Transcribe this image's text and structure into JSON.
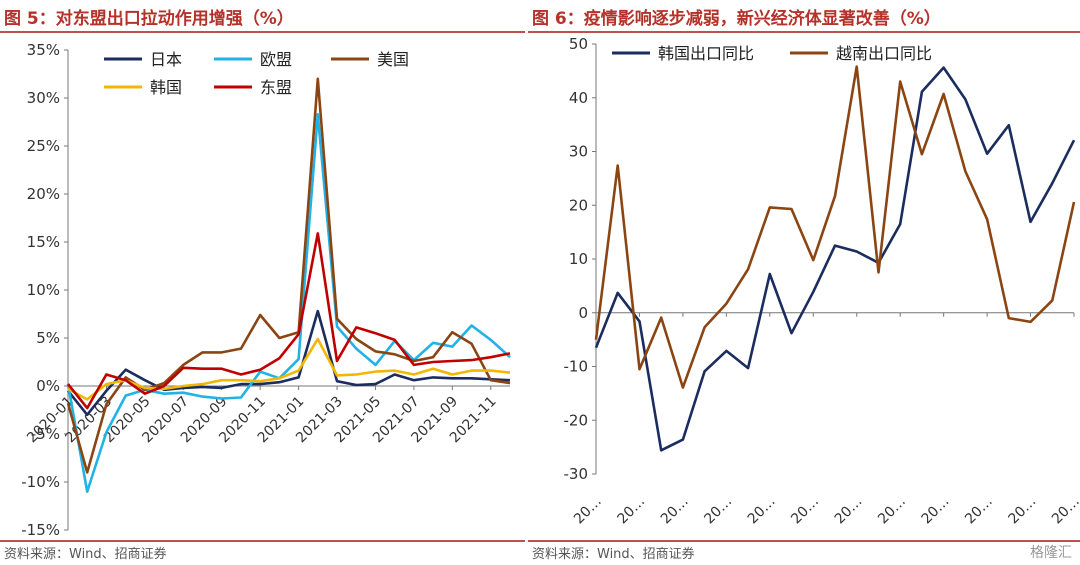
{
  "left": {
    "title": "图 5：对东盟出口拉动作用增强（%）",
    "source": "资料来源：Wind、招商证券"
  },
  "right": {
    "title": "图 6：疫情影响逐步减弱，新兴经济体显著改善（%）",
    "source": "资料来源：Wind、招商证券",
    "watermark": "格隆汇"
  },
  "chart_data": [
    {
      "type": "line",
      "title": "图 5：对东盟出口拉动作用增强（%）",
      "ylim": [
        -15,
        35
      ],
      "yticks": [
        "-15%",
        "-10%",
        "-5%",
        "0%",
        "5%",
        "10%",
        "15%",
        "20%",
        "25%",
        "30%",
        "35%"
      ],
      "ytick_values": [
        -15,
        -10,
        -5,
        0,
        5,
        10,
        15,
        20,
        25,
        30,
        35
      ],
      "x": [
        "2020-01",
        "2020-02",
        "2020-03",
        "2020-04",
        "2020-05",
        "2020-06",
        "2020-07",
        "2020-08",
        "2020-09",
        "2020-10",
        "2020-11",
        "2020-12",
        "2021-01",
        "2021-02",
        "2021-03",
        "2021-04",
        "2021-05",
        "2021-06",
        "2021-07",
        "2021-08",
        "2021-09",
        "2021-10",
        "2021-11",
        "2021-12"
      ],
      "xtick_labels": [
        "2020-01",
        "2020-03",
        "2020-05",
        "2020-07",
        "2020-09",
        "2020-11",
        "2021-01",
        "2021-03",
        "2021-05",
        "2021-07",
        "2021-09",
        "2021-11"
      ],
      "legend": "top-left, two rows",
      "grid": false,
      "colors": {
        "日本": "#1b2c5e",
        "欧盟": "#21b3e6",
        "美国": "#8b4513",
        "韩国": "#f2b705",
        "东盟": "#c00000"
      },
      "series": [
        {
          "name": "日本",
          "values": [
            -0.5,
            -3.0,
            -0.5,
            1.7,
            0.6,
            -0.4,
            -0.2,
            -0.1,
            -0.2,
            0.2,
            0.2,
            0.4,
            0.9,
            7.8,
            0.5,
            0.1,
            0.2,
            1.2,
            0.6,
            0.9,
            0.8,
            0.8,
            0.7,
            0.6
          ]
        },
        {
          "name": "欧盟",
          "values": [
            0.2,
            -11.0,
            -4.8,
            -1.0,
            -0.4,
            -0.8,
            -0.7,
            -1.1,
            -1.3,
            -1.2,
            1.5,
            0.8,
            2.8,
            28.3,
            6.2,
            3.9,
            2.2,
            4.7,
            2.7,
            4.5,
            4.1,
            6.3,
            4.8,
            3.0
          ]
        },
        {
          "name": "美国",
          "values": [
            -1.8,
            -9.0,
            -1.9,
            0.9,
            -0.4,
            0.3,
            2.2,
            3.5,
            3.5,
            3.9,
            7.4,
            5.0,
            5.6,
            32.0,
            7.0,
            4.9,
            3.6,
            3.3,
            2.6,
            3.0,
            5.6,
            4.4,
            0.6,
            0.3
          ]
        },
        {
          "name": "韩国",
          "values": [
            -0.3,
            -1.4,
            0.2,
            0.6,
            -0.2,
            -0.3,
            0.0,
            0.2,
            0.6,
            0.6,
            0.5,
            0.8,
            1.6,
            4.9,
            1.1,
            1.2,
            1.5,
            1.6,
            1.2,
            1.8,
            1.2,
            1.6,
            1.6,
            1.4
          ]
        },
        {
          "name": "东盟",
          "values": [
            0.2,
            -2.3,
            1.2,
            0.6,
            -0.8,
            0.0,
            1.9,
            1.8,
            1.8,
            1.2,
            1.7,
            2.9,
            5.4,
            15.9,
            2.6,
            6.1,
            5.5,
            4.8,
            2.2,
            2.5,
            2.6,
            2.7,
            3.0,
            3.4
          ]
        }
      ]
    },
    {
      "type": "line",
      "title": "图 6：疫情影响逐步减弱，新兴经济体显著改善（%）",
      "ylim": [
        -30,
        50
      ],
      "yticks": [
        "-30",
        "-20",
        "-10",
        "0",
        "10",
        "20",
        "30",
        "40",
        "50"
      ],
      "ytick_values": [
        -30,
        -20,
        -10,
        0,
        10,
        20,
        30,
        40,
        50
      ],
      "xtick_labels": [
        "20…",
        "20…",
        "20…",
        "20…",
        "20…",
        "20…",
        "20…",
        "20…",
        "20…",
        "20…",
        "20…",
        "20…"
      ],
      "legend": "top-left, one row",
      "grid": false,
      "colors": {
        "韩国出口同比": "#1b2c5e",
        "越南出口同比": "#8b4513"
      },
      "series": [
        {
          "name": "韩国出口同比",
          "values": [
            -6.5,
            3.7,
            -1.6,
            -25.6,
            -23.6,
            -10.9,
            -7.1,
            -10.3,
            7.2,
            -3.8,
            3.9,
            12.5,
            11.4,
            9.3,
            16.5,
            41.1,
            45.6,
            39.7,
            29.6,
            34.9,
            16.9,
            24.1,
            32.1
          ]
        },
        {
          "name": "越南出口同比",
          "values": [
            -5.0,
            27.4,
            -10.5,
            -0.9,
            -13.9,
            -2.7,
            1.7,
            8.1,
            19.6,
            19.3,
            9.8,
            21.7,
            45.8,
            7.5,
            43.0,
            29.5,
            40.7,
            26.3,
            17.4,
            -1.0,
            -1.7,
            2.3,
            20.6
          ]
        }
      ]
    }
  ]
}
